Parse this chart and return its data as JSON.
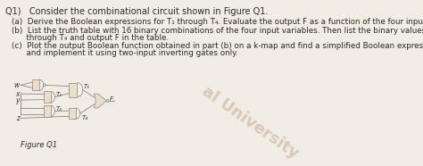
{
  "background_color": "#f2ede4",
  "title_line": "Q1)   Consider the combinational circuit shown in Figure Q1.",
  "items": [
    "(a)  Derive the Boolean expressions for T₁ through T₄. Evaluate the output F as a function of the four inputs.",
    "(b)  List the truth table with 16 binary combinations of the four input variables. Then list the binary values for T₁",
    "      through T₄ and output F in the table.",
    "(c)  Plot the output Boolean function obtained in part (b) on a k-map and find a simplified Boolean expression",
    "      and implement it using two-input inverting gates only."
  ],
  "figure_label": "Figure Q1",
  "font_size_title": 7.0,
  "font_size_body": 6.3,
  "watermark_text": "al University",
  "watermark_color": "#b8a890",
  "watermark_alpha": 0.5,
  "gate_fill": "#e8dece",
  "gate_edge": "#888880",
  "line_color": "#888880"
}
